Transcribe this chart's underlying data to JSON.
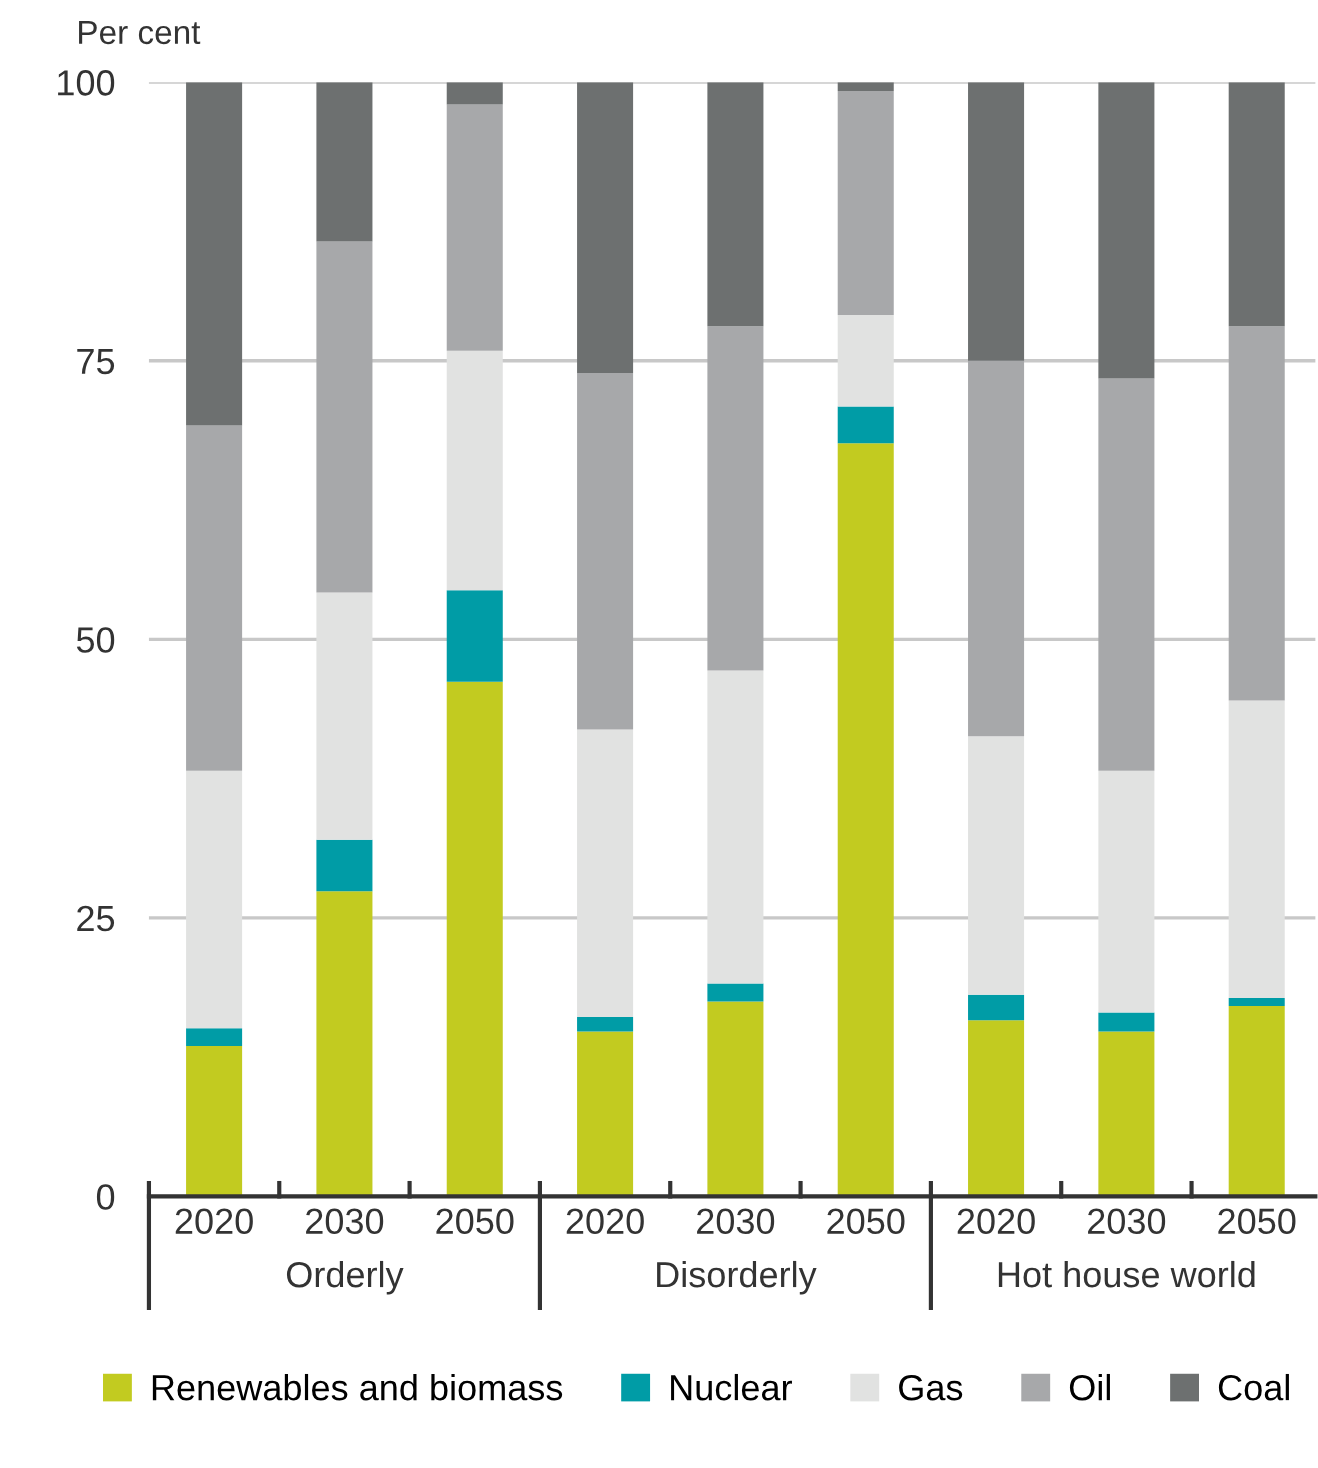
{
  "chart_data": {
    "type": "bar",
    "stacked": true,
    "ylabel": "Per cent",
    "categories": [
      "2020",
      "2030",
      "2050",
      "2020",
      "2030",
      "2050",
      "2020",
      "2030",
      "2050"
    ],
    "annotations": [
      "Orderly",
      "Disorderly",
      "Hot house world"
    ],
    "series": [
      {
        "name": "Renewables and biomass",
        "color": "#c2cb20",
        "values": [
          13.5,
          27.4,
          46.2,
          14.8,
          17.5,
          67.6,
          15.8,
          14.8,
          17.1
        ]
      },
      {
        "name": "Nuclear",
        "color": "#009ca6",
        "values": [
          1.6,
          4.6,
          8.2,
          1.3,
          1.6,
          3.3,
          2.3,
          1.7,
          0.7
        ]
      },
      {
        "name": "Gas",
        "color": "#e1e2e1",
        "values": [
          23.1,
          22.2,
          21.5,
          25.8,
          28.1,
          8.2,
          23.2,
          21.7,
          26.7
        ]
      },
      {
        "name": "Oil",
        "color": "#a7a8aa",
        "values": [
          31.0,
          31.5,
          22.1,
          32.0,
          30.9,
          20.1,
          33.7,
          35.2,
          33.6
        ]
      },
      {
        "name": "Coal",
        "color": "#6d7070",
        "values": [
          30.8,
          14.3,
          2.0,
          26.1,
          21.9,
          0.8,
          25.0,
          26.6,
          21.9
        ]
      }
    ],
    "ylim": [
      0,
      100
    ],
    "yticks": [
      0,
      25,
      50,
      75,
      100
    ],
    "grid": "y",
    "legend": "bottom"
  }
}
